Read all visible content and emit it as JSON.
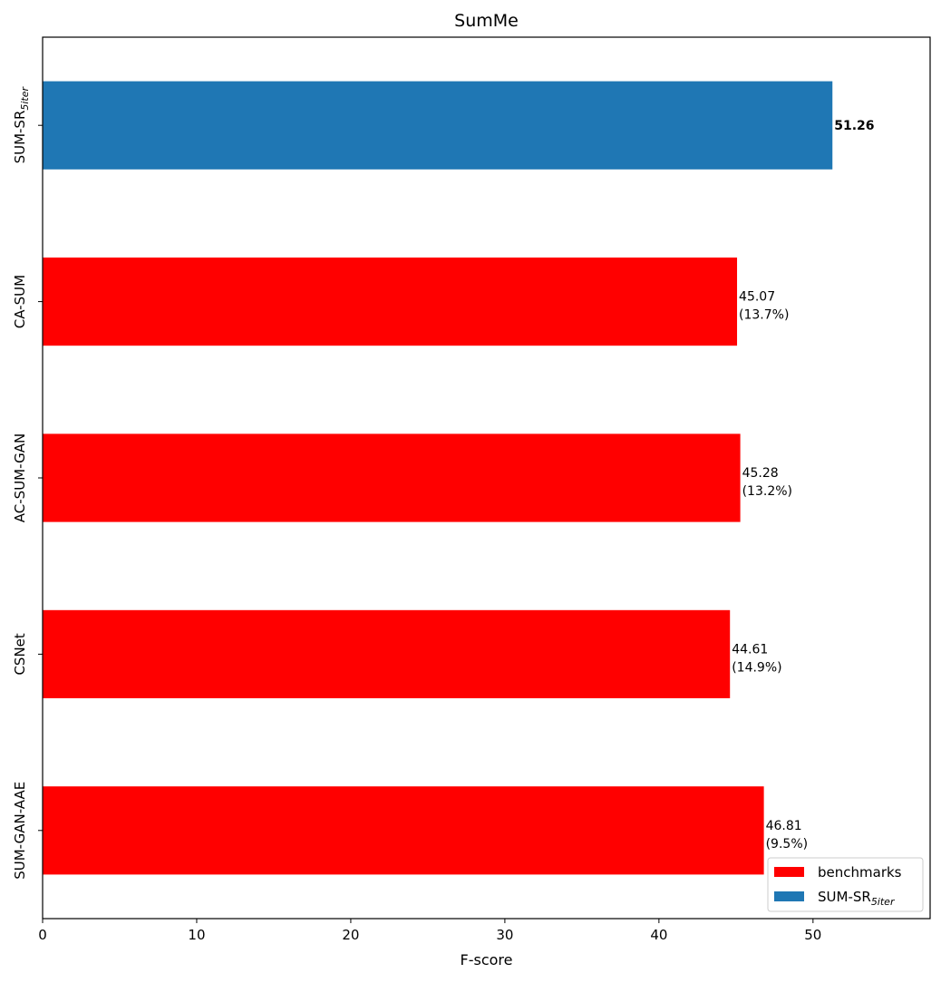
{
  "chart_data": {
    "type": "bar",
    "orientation": "horizontal",
    "title": "SumMe",
    "xlabel": "F-score",
    "ylabel": "",
    "xlim": [
      0,
      57.6
    ],
    "xticks": [
      "0",
      "10",
      "20",
      "30",
      "40",
      "50"
    ],
    "grid": false,
    "legend_position": "bottom-right",
    "categories": [
      {
        "base": "SUM-GAN-AAE",
        "sub": ""
      },
      {
        "base": "CSNet",
        "sub": ""
      },
      {
        "base": "AC-SUM-GAN",
        "sub": ""
      },
      {
        "base": "CA-SUM",
        "sub": ""
      },
      {
        "base": "SUM-SR",
        "sub": "5iter"
      }
    ],
    "values": [
      46.81,
      44.61,
      45.28,
      45.07,
      51.26
    ],
    "series_index": [
      0,
      0,
      0,
      0,
      1
    ],
    "bar_labels": [
      {
        "value": "46.81",
        "note": "(9.5%)",
        "bold": false
      },
      {
        "value": "44.61",
        "note": "(14.9%)",
        "bold": false
      },
      {
        "value": "45.28",
        "note": "(13.2%)",
        "bold": false
      },
      {
        "value": "45.07",
        "note": "(13.7%)",
        "bold": false
      },
      {
        "value": "51.26",
        "note": "",
        "bold": true
      }
    ],
    "series": [
      {
        "name": "benchmarks",
        "sub": "",
        "color": "#ff0000"
      },
      {
        "name": "SUM-SR",
        "sub": "5iter",
        "color": "#1f77b4"
      }
    ]
  }
}
